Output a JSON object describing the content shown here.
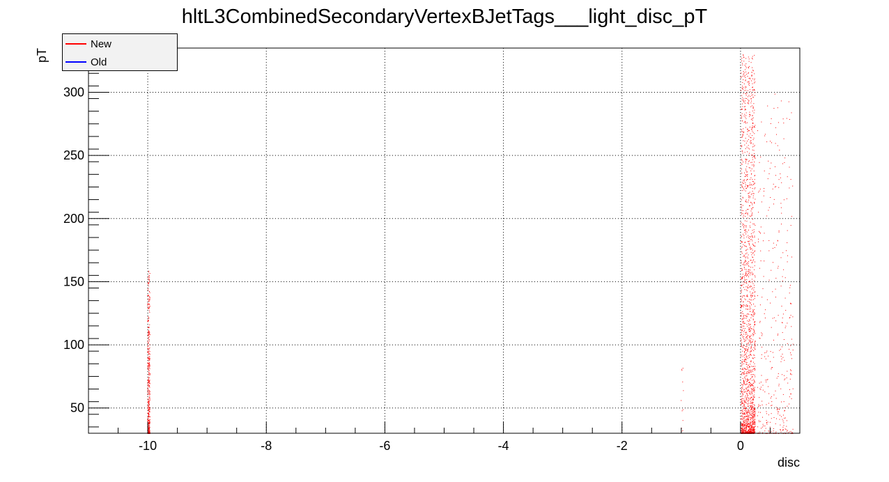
{
  "chart_data": {
    "type": "scatter",
    "title": "hltL3CombinedSecondaryVertexBJetTags___light_disc_pT",
    "xlabel": "disc",
    "ylabel": "pT",
    "xlim": [
      -11,
      1
    ],
    "ylim": [
      30,
      335
    ],
    "grid": true,
    "x_ticks": [
      "-10",
      "-8",
      "-6",
      "-4",
      "-2",
      "0"
    ],
    "y_ticks": [
      "50",
      "100",
      "150",
      "200",
      "250",
      "300"
    ],
    "legend_placement": "top-left",
    "series": [
      {
        "name": "New",
        "color": "#ff0000"
      },
      {
        "name": "Old",
        "color": "#0000ff"
      }
    ],
    "clusters": [
      {
        "x": -10,
        "x_spread": 0.02,
        "y_range": [
          30,
          160
        ],
        "count": 420
      },
      {
        "x": -1,
        "x_spread": 0.02,
        "y_range": [
          30,
          90
        ],
        "count": 12
      },
      {
        "x": 0.05,
        "x_spread": 0.12,
        "y_range": [
          30,
          330
        ],
        "count": 1800
      },
      {
        "x": 0.4,
        "x_spread": 0.6,
        "y_range": [
          30,
          300
        ],
        "count": 380
      }
    ]
  }
}
